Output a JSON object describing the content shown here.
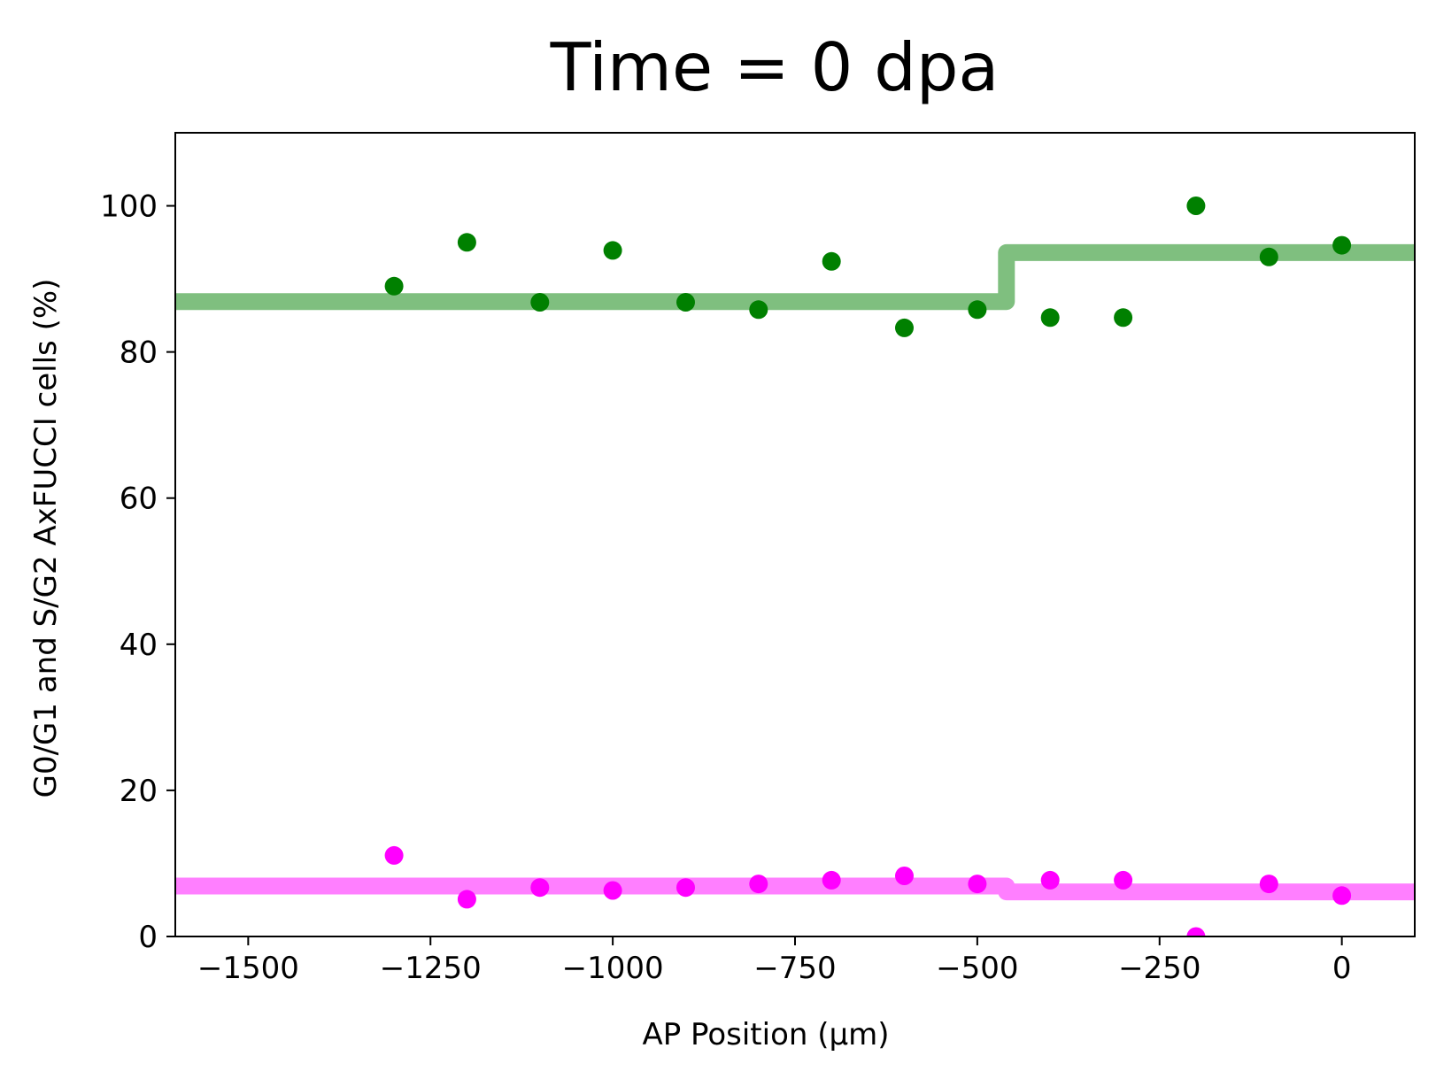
{
  "chart_data": {
    "type": "scatter",
    "title": "Time = 0 dpa",
    "xlabel": "AP Position (μm)",
    "ylabel": "G0/G1 and S/G2 AxFUCCI cells (%)",
    "xlim": [
      -1600,
      100
    ],
    "ylim": [
      0,
      110
    ],
    "xticks": [
      -1500,
      -1250,
      -1000,
      -750,
      -500,
      -250,
      0
    ],
    "xtick_labels": [
      "−1500",
      "−1250",
      "−1000",
      "−750",
      "−500",
      "−250",
      "0"
    ],
    "yticks": [
      0,
      20,
      40,
      60,
      80,
      100
    ],
    "ytick_labels": [
      "0",
      "20",
      "40",
      "60",
      "80",
      "100"
    ],
    "grid": false,
    "legend": "none",
    "series": [
      {
        "kind": "points",
        "color": "#008000",
        "x": [
          -1300,
          -1200,
          -1100,
          -1000,
          -900,
          -800,
          -700,
          -600,
          -500,
          -400,
          -300,
          -200,
          -100,
          0
        ],
        "y": [
          89.0,
          95.0,
          86.8,
          93.9,
          86.8,
          85.8,
          92.4,
          83.3,
          85.8,
          84.7,
          84.7,
          100.0,
          93.0,
          94.6
        ]
      },
      {
        "kind": "points",
        "color": "#ff00ff",
        "x": [
          -1300,
          -1200,
          -1100,
          -1000,
          -900,
          -800,
          -700,
          -600,
          -500,
          -400,
          -300,
          -200,
          -100,
          0
        ],
        "y": [
          11.1,
          5.1,
          6.7,
          6.3,
          6.7,
          7.2,
          7.7,
          8.3,
          7.2,
          7.7,
          7.7,
          0.0,
          7.2,
          5.6
        ]
      },
      {
        "kind": "step",
        "color": "#008000",
        "x": [
          -1600,
          -460,
          -460,
          100
        ],
        "y": [
          86.9,
          86.9,
          93.6,
          93.6
        ]
      },
      {
        "kind": "step",
        "color": "#ff00ff",
        "x": [
          -1600,
          -460,
          -460,
          100
        ],
        "y": [
          6.9,
          6.9,
          6.1,
          6.1
        ]
      }
    ]
  }
}
